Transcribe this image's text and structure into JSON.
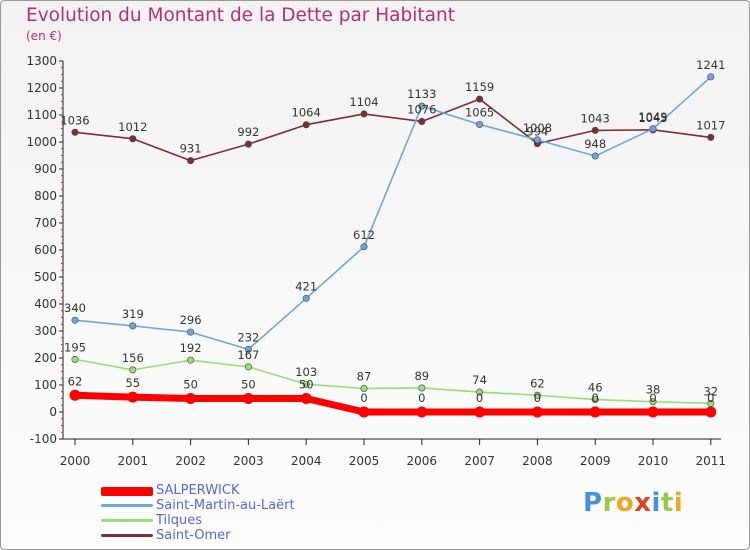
{
  "chart_data": {
    "type": "line",
    "title": "Evolution du Montant de la Dette par Habitant",
    "subtitle": "(en €)",
    "xlabel": "",
    "ylabel": "",
    "categories": [
      "2000",
      "2001",
      "2002",
      "2003",
      "2004",
      "2005",
      "2006",
      "2007",
      "2008",
      "2009",
      "2010",
      "2011"
    ],
    "ylim": [
      -100,
      1300
    ],
    "yticks": [
      "-100",
      "0",
      "100",
      "200",
      "300",
      "400",
      "500",
      "600",
      "700",
      "800",
      "900",
      "1000",
      "1100",
      "1200",
      "1300"
    ],
    "grid": false,
    "legend_position": "bottom-left",
    "series": [
      {
        "name": "SALPERWICK",
        "color": "#ff0000",
        "values": [
          62,
          55,
          50,
          50,
          50,
          0,
          0,
          0,
          0,
          0,
          0,
          0
        ]
      },
      {
        "name": "Saint-Martin-au-Laërt",
        "color": "#6ea6d7",
        "values": [
          340,
          319,
          296,
          232,
          421,
          612,
          1133,
          1065,
          1008,
          948,
          1049,
          1241
        ]
      },
      {
        "name": "Tilques",
        "color": "#99dd77",
        "values": [
          195,
          156,
          192,
          167,
          103,
          87,
          89,
          74,
          62,
          46,
          38,
          32
        ]
      },
      {
        "name": "Saint-Omer",
        "color": "#7d2d33",
        "values": [
          1036,
          1012,
          931,
          992,
          1064,
          1104,
          1076,
          1159,
          994,
          1043,
          1045,
          1017
        ]
      }
    ]
  },
  "brand": {
    "letters": [
      "P",
      "r",
      "o",
      "x",
      "i",
      "t",
      "i"
    ],
    "colors": [
      "#4a90d9",
      "#9bc64a",
      "#f4a522",
      "#e0411d",
      "#4a90d9",
      "#9bc64a",
      "#f4a522"
    ]
  }
}
